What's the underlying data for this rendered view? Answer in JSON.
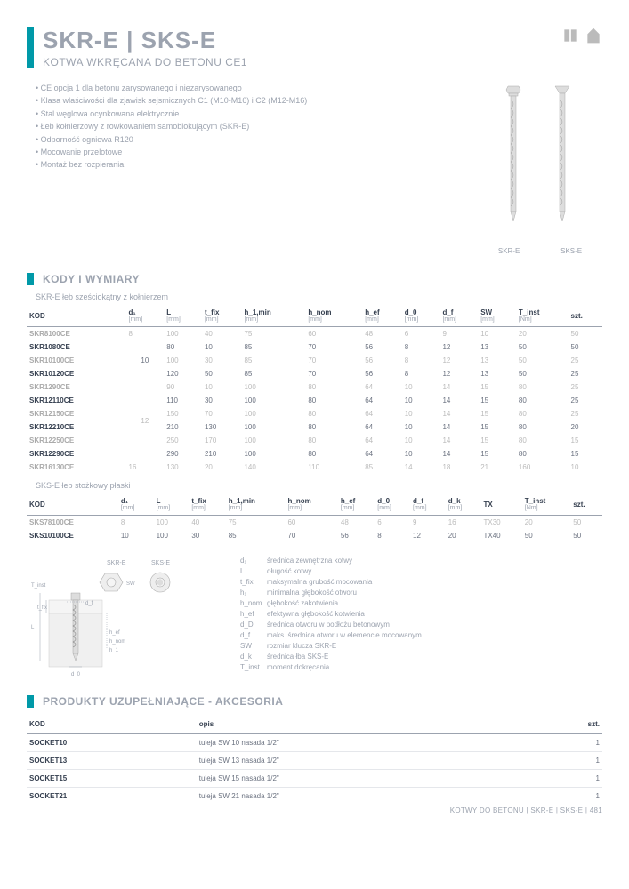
{
  "header": {
    "title": "SKR-E | SKS-E",
    "subtitle": "KOTWA WKRĘCANA DO BETONU CE1"
  },
  "features": [
    "CE opcja 1 dla betonu zarysowanego i niezarysowanego",
    "Klasa właściwości dla zjawisk sejsmicznych C1 (M10-M16) i C2 (M12-M16)",
    "Stal węglowa ocynkowana elektrycznie",
    "Łeb kołnierzowy z rowkowaniem samoblokującym (SKR-E)",
    "Odporność ogniowa R120",
    "Mocowanie przelotowe",
    "Montaż bez rozpierania"
  ],
  "product_labels": [
    "SKR-E",
    "SKS-E"
  ],
  "section1": "KODY I WYMIARY",
  "table1": {
    "label": "SKR-E łeb sześciokątny z kołnierzem",
    "columns": [
      "KOD",
      "d₁",
      "L",
      "t_fix",
      "h_1,min",
      "h_nom",
      "h_ef",
      "d_0",
      "d_f",
      "SW",
      "T_inst",
      "szt."
    ],
    "units": [
      "",
      "[mm]",
      "[mm]",
      "[mm]",
      "[mm]",
      "[mm]",
      "[mm]",
      "[mm]",
      "[mm]",
      "[mm]",
      "[Nm]",
      ""
    ],
    "rows": [
      {
        "cells": [
          "SKR8100CE",
          "8",
          "100",
          "40",
          "75",
          "60",
          "48",
          "6",
          "9",
          "10",
          "20",
          "50"
        ],
        "dark": true
      },
      {
        "cells": [
          "SKR1080CE",
          "",
          "80",
          "10",
          "85",
          "70",
          "56",
          "8",
          "12",
          "13",
          "50",
          "50"
        ],
        "dark": false,
        "merge_d": "10",
        "merge_rows": 3
      },
      {
        "cells": [
          "SKR10100CE",
          "",
          "100",
          "30",
          "85",
          "70",
          "56",
          "8",
          "12",
          "13",
          "50",
          "25"
        ],
        "dark": true
      },
      {
        "cells": [
          "SKR10120CE",
          "",
          "120",
          "50",
          "85",
          "70",
          "56",
          "8",
          "12",
          "13",
          "50",
          "25"
        ],
        "dark": false
      },
      {
        "cells": [
          "SKR1290CE",
          "",
          "90",
          "10",
          "100",
          "80",
          "64",
          "10",
          "14",
          "15",
          "80",
          "25"
        ],
        "dark": true,
        "merge_d": "12",
        "merge_rows": 6
      },
      {
        "cells": [
          "SKR12110CE",
          "",
          "110",
          "30",
          "100",
          "80",
          "64",
          "10",
          "14",
          "15",
          "80",
          "25"
        ],
        "dark": false
      },
      {
        "cells": [
          "SKR12150CE",
          "",
          "150",
          "70",
          "100",
          "80",
          "64",
          "10",
          "14",
          "15",
          "80",
          "25"
        ],
        "dark": true
      },
      {
        "cells": [
          "SKR12210CE",
          "",
          "210",
          "130",
          "100",
          "80",
          "64",
          "10",
          "14",
          "15",
          "80",
          "20"
        ],
        "dark": false
      },
      {
        "cells": [
          "SKR12250CE",
          "",
          "250",
          "170",
          "100",
          "80",
          "64",
          "10",
          "14",
          "15",
          "80",
          "15"
        ],
        "dark": true
      },
      {
        "cells": [
          "SKR12290CE",
          "",
          "290",
          "210",
          "100",
          "80",
          "64",
          "10",
          "14",
          "15",
          "80",
          "15"
        ],
        "dark": false
      },
      {
        "cells": [
          "SKR16130CE",
          "16",
          "130",
          "20",
          "140",
          "110",
          "85",
          "14",
          "18",
          "21",
          "160",
          "10"
        ],
        "dark": true
      }
    ]
  },
  "table2": {
    "label": "SKS-E łeb stożkowy płaski",
    "columns": [
      "KOD",
      "d₁",
      "L",
      "t_fix",
      "h_1,min",
      "h_nom",
      "h_ef",
      "d_0",
      "d_f",
      "d_k",
      "TX",
      "T_inst",
      "szt."
    ],
    "units": [
      "",
      "[mm]",
      "[mm]",
      "[mm]",
      "[mm]",
      "[mm]",
      "[mm]",
      "[mm]",
      "[mm]",
      "[mm]",
      "",
      "[Nm]",
      ""
    ],
    "rows": [
      {
        "cells": [
          "SKS78100CE",
          "8",
          "100",
          "40",
          "75",
          "60",
          "48",
          "6",
          "9",
          "16",
          "TX30",
          "20",
          "50"
        ],
        "dark": true
      },
      {
        "cells": [
          "SKS10100CE",
          "10",
          "100",
          "30",
          "85",
          "70",
          "56",
          "8",
          "12",
          "20",
          "TX40",
          "50",
          "50"
        ],
        "dark": false
      }
    ]
  },
  "diagram_labels": {
    "skr": "SKR-E",
    "sks": "SKS-E"
  },
  "legend": [
    {
      "sym": "d₁",
      "txt": "średnica zewnętrzna kotwy"
    },
    {
      "sym": "L",
      "txt": "długość kotwy"
    },
    {
      "sym": "t_fix",
      "txt": "maksymalna grubość mocowania"
    },
    {
      "sym": "h₁",
      "txt": "minimalna głębokość otworu"
    },
    {
      "sym": "h_nom",
      "txt": "głębokość zakotwienia"
    },
    {
      "sym": "h_ef",
      "txt": "efektywna głębokość kotwienia"
    },
    {
      "sym": "d_D",
      "txt": "średnica otworu w podłożu betonowym"
    },
    {
      "sym": "d_f",
      "txt": "maks. średnica otworu w elemencie mocowanym"
    },
    {
      "sym": "SW",
      "txt": "rozmiar klucza SKR-E"
    },
    {
      "sym": "d_k",
      "txt": "średnica łba SKS-E"
    },
    {
      "sym": "T_inst",
      "txt": "moment dokręcania"
    }
  ],
  "section2": "PRODUKTY UZUPEŁNIAJĄCE - AKCESORIA",
  "table3": {
    "columns": [
      "KOD",
      "opis",
      "szt."
    ],
    "rows": [
      [
        "SOCKET10",
        "tuleja SW 10 nasada 1/2\"",
        "1"
      ],
      [
        "SOCKET13",
        "tuleja SW 13 nasada 1/2\"",
        "1"
      ],
      [
        "SOCKET15",
        "tuleja SW 15 nasada 1/2\"",
        "1"
      ],
      [
        "SOCKET21",
        "tuleja SW 21 nasada 1/2\"",
        "1"
      ]
    ]
  },
  "footer": "KOTWY DO BETONU  |  SKR-E | SKS-E  |  481"
}
